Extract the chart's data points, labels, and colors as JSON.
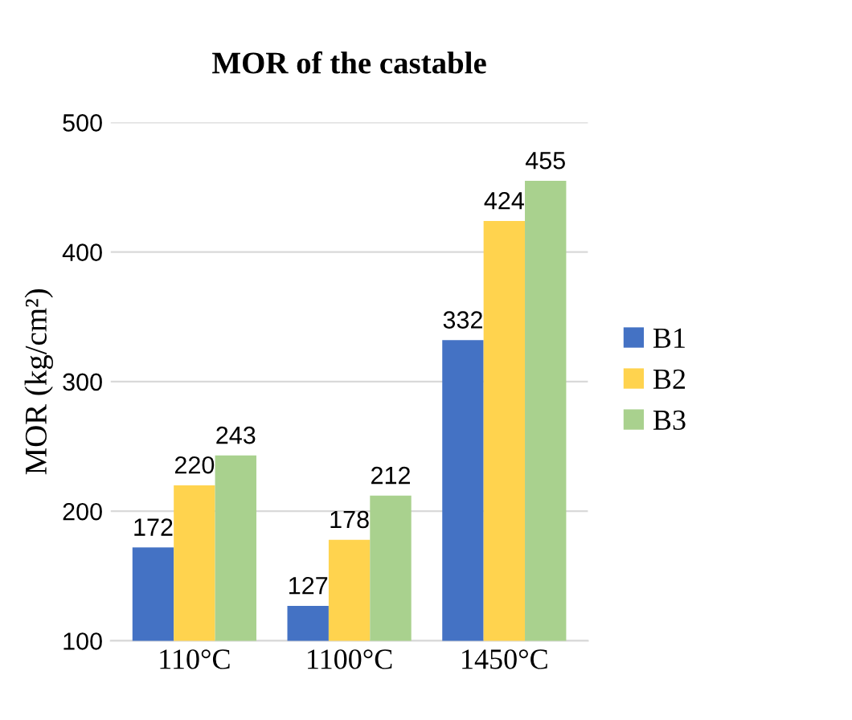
{
  "chart_data": {
    "type": "bar",
    "title": "MOR of the castable",
    "ylabel": "MOR (kg/cm²)",
    "categories": [
      "110°C",
      "1100°C",
      "1450°C"
    ],
    "series": [
      {
        "name": "B1",
        "color": "#4472c4",
        "values": [
          172,
          127,
          332
        ]
      },
      {
        "name": "B2",
        "color": "#ffd34e",
        "values": [
          220,
          178,
          424
        ]
      },
      {
        "name": "B3",
        "color": "#a9d18e",
        "values": [
          243,
          212,
          455
        ]
      }
    ],
    "ylim": [
      100,
      500
    ],
    "yticks": [
      100,
      200,
      300,
      400,
      500
    ],
    "grid": "y",
    "legend": "right",
    "data_labels": true
  }
}
